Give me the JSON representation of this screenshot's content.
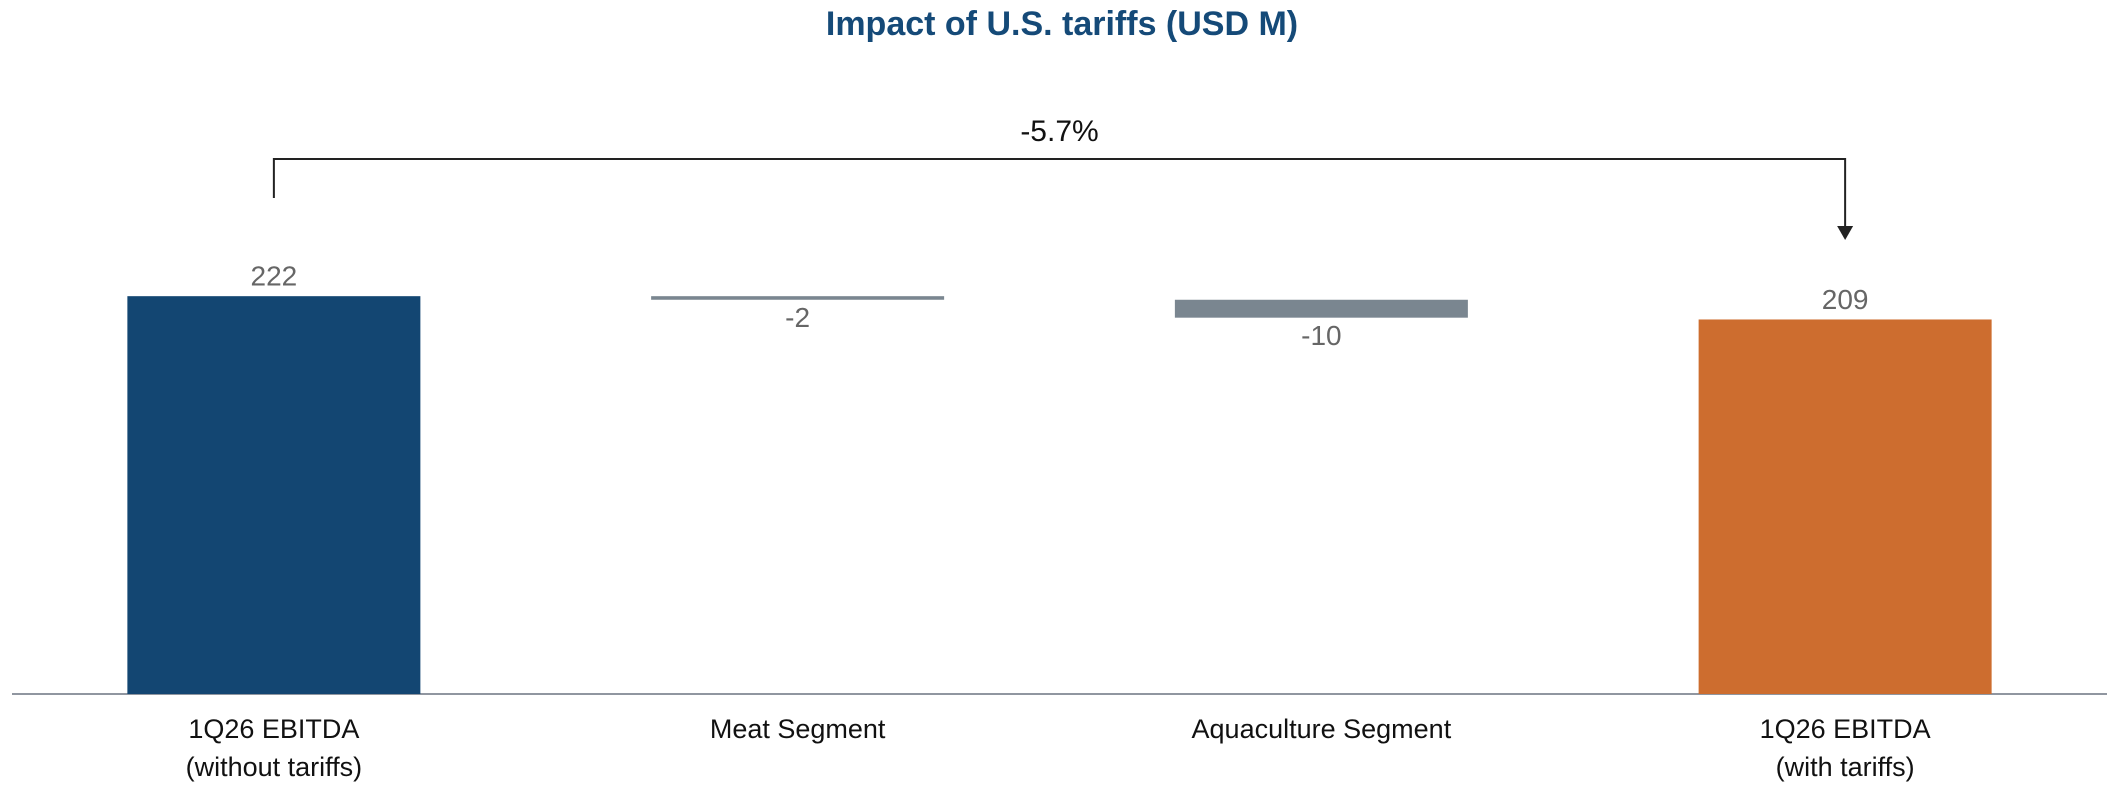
{
  "chart_data": {
    "type": "waterfall",
    "title": "Impact of U.S. tariffs (USD M)",
    "categories": [
      "1Q26 EBITDA\n(without tariffs)",
      "Meat Segment",
      "Aquaculture Segment",
      "1Q26 EBITDA\n(with tariffs)"
    ],
    "values": [
      222,
      -2,
      -10,
      209
    ],
    "measure": [
      "absolute",
      "relative",
      "relative",
      "absolute"
    ],
    "colors": [
      "#134672",
      "#7a8690",
      "#7a8690",
      "#cd6d2f"
    ],
    "ylim": [
      0,
      250
    ],
    "annotation": "-5.7%"
  }
}
